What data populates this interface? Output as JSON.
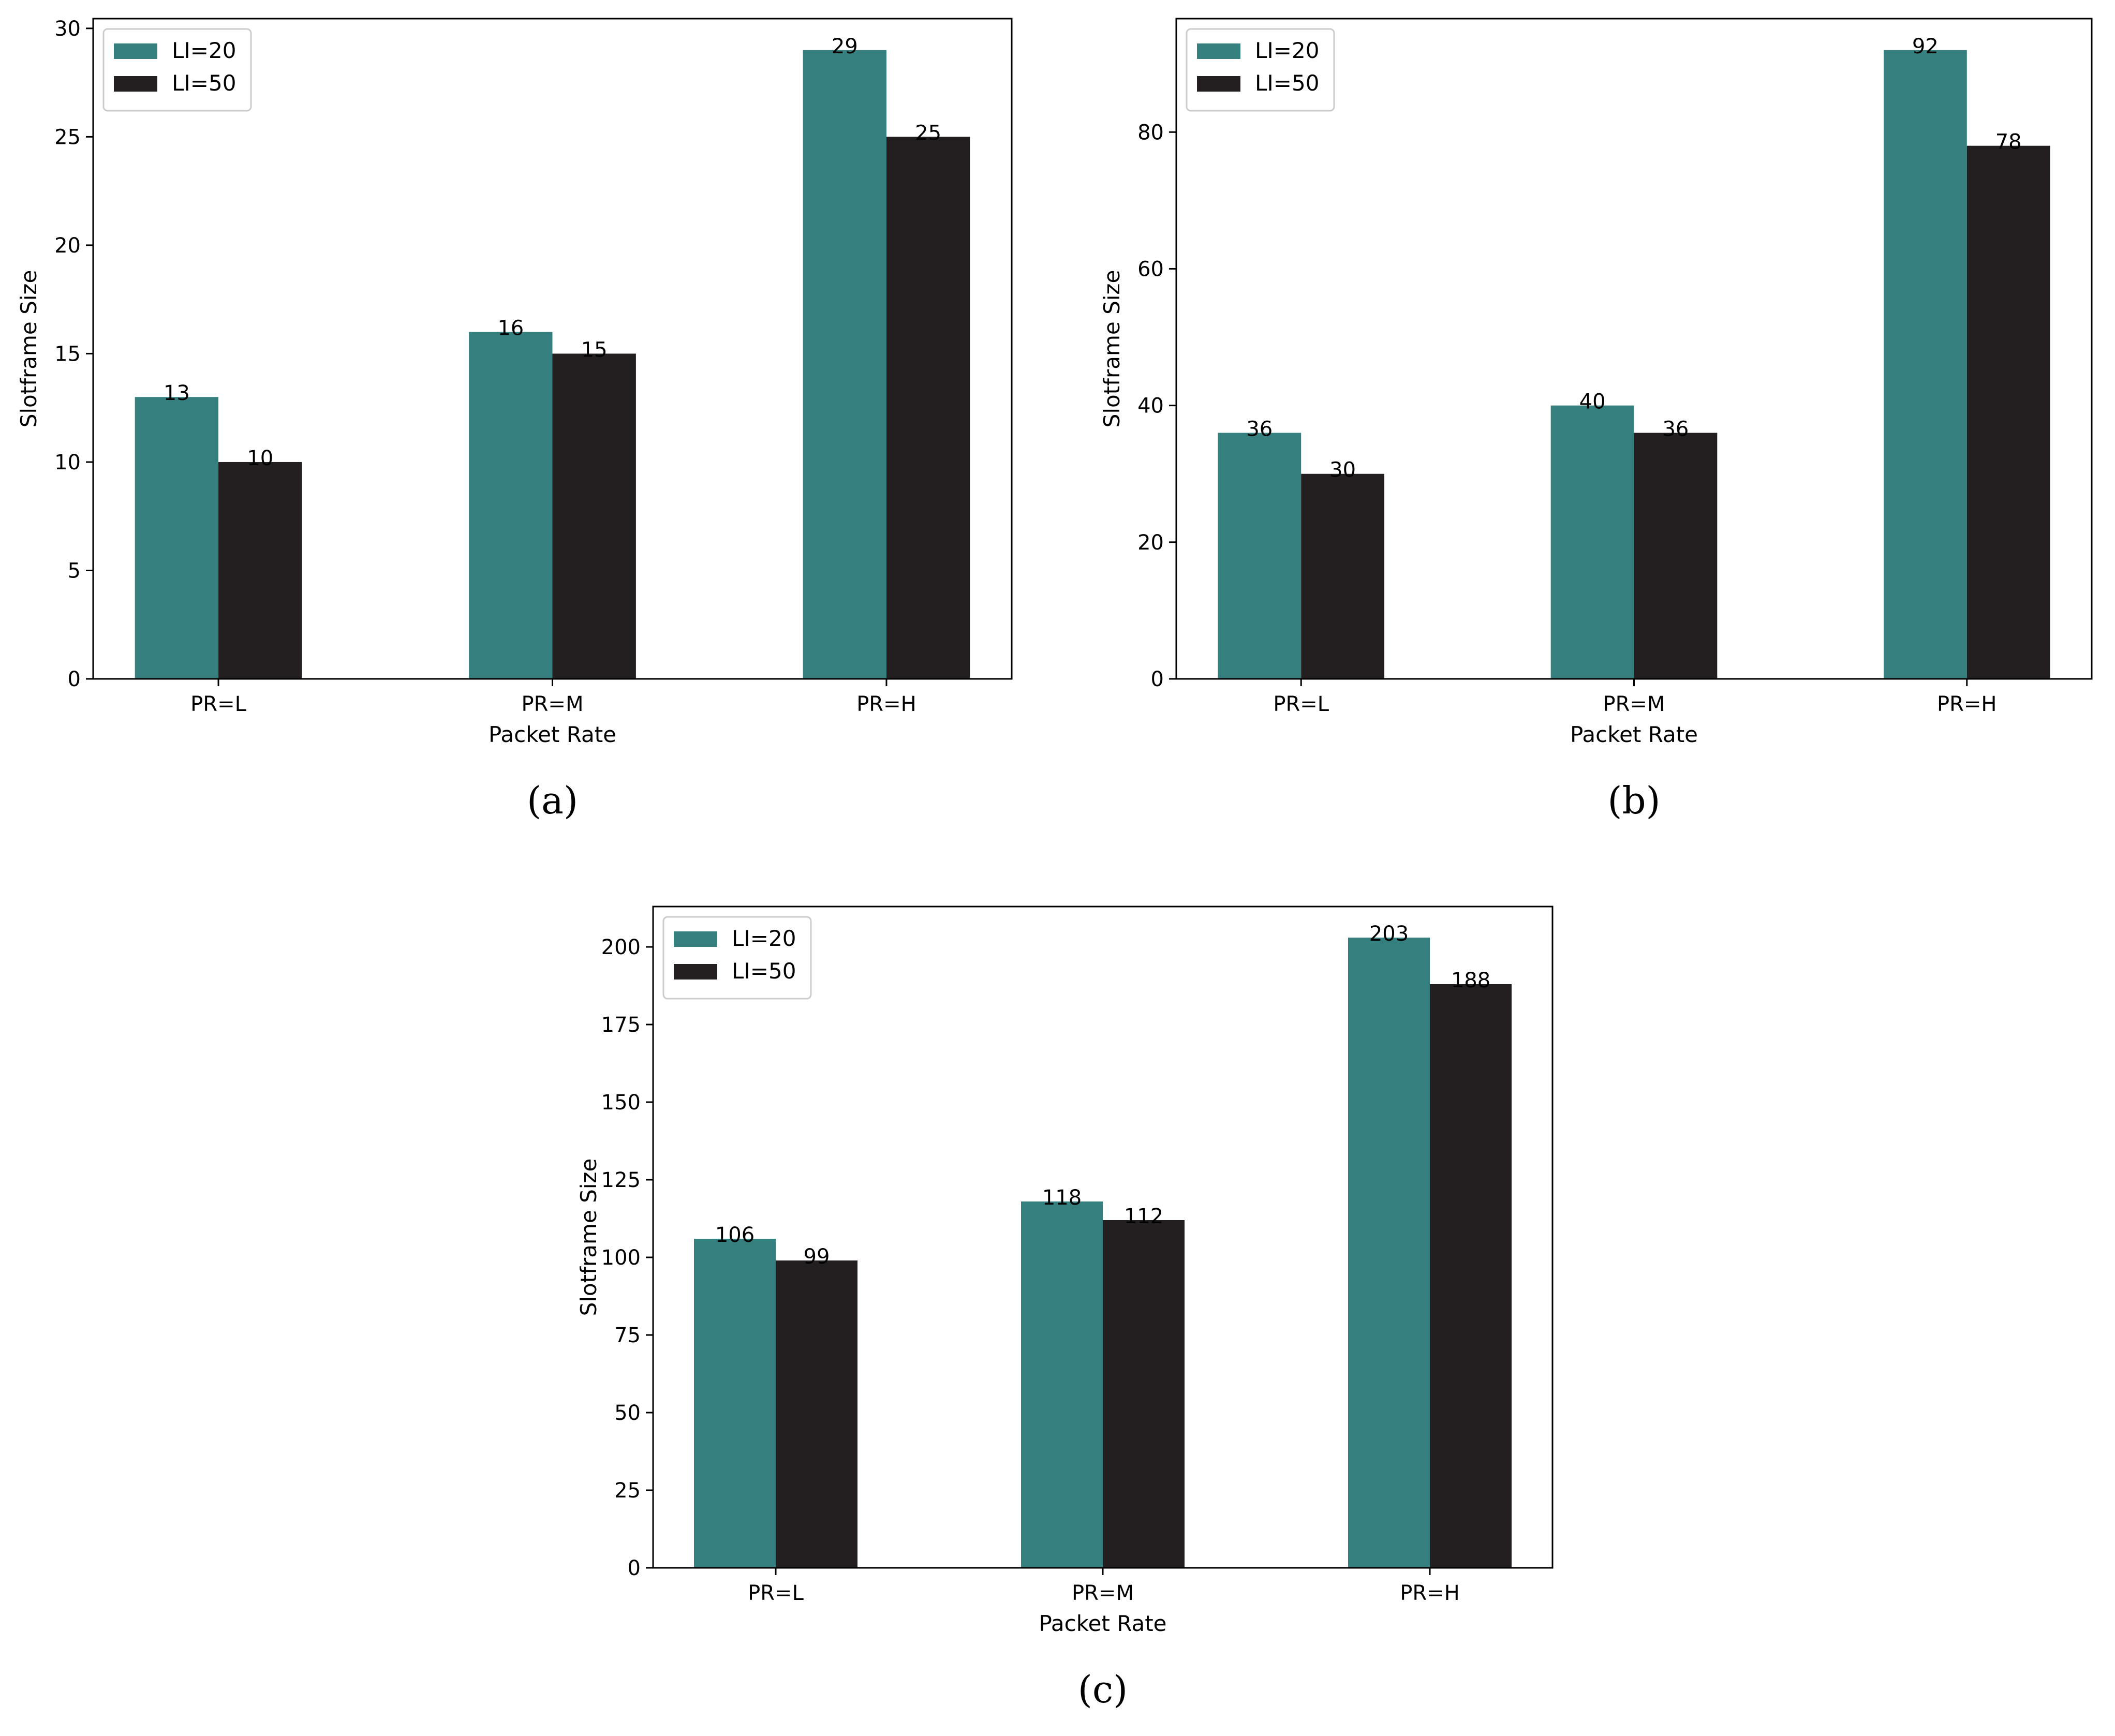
{
  "colors": {
    "series0": "#35807f",
    "series1": "#231f20"
  },
  "chart_data": [
    {
      "type": "bar",
      "caption": "(a)",
      "categories": [
        "PR=L",
        "PR=M",
        "PR=H"
      ],
      "series": [
        {
          "name": "LI=20",
          "values": [
            13,
            16,
            29
          ]
        },
        {
          "name": "LI=50",
          "values": [
            10,
            15,
            25
          ]
        }
      ],
      "data_labels": [
        [
          "13",
          "16",
          "29"
        ],
        [
          "10",
          "15",
          "25"
        ]
      ],
      "xlabel": "Packet Rate",
      "ylabel": "Slotframe Size",
      "ylim": [
        0,
        30.45
      ],
      "yticks": [
        0,
        5,
        10,
        15,
        20,
        25,
        30
      ],
      "ytick_labels": [
        "0",
        "5",
        "10",
        "15",
        "20",
        "25",
        "30"
      ],
      "legend": "top-left",
      "grid": false
    },
    {
      "type": "bar",
      "caption": "(b)",
      "categories": [
        "PR=L",
        "PR=M",
        "PR=H"
      ],
      "series": [
        {
          "name": "LI=20",
          "values": [
            36,
            40,
            92
          ]
        },
        {
          "name": "LI=50",
          "values": [
            30,
            36,
            78
          ]
        }
      ],
      "data_labels": [
        [
          "36",
          "40",
          "92"
        ],
        [
          "30",
          "36",
          "78"
        ]
      ],
      "xlabel": "Packet Rate",
      "ylabel": "Slotframe Size",
      "ylim": [
        0,
        96.6
      ],
      "yticks": [
        0,
        20,
        40,
        60,
        80
      ],
      "ytick_labels": [
        "0",
        "20",
        "40",
        "60",
        "80"
      ],
      "legend": "top-left",
      "grid": false
    },
    {
      "type": "bar",
      "caption": "(c)",
      "categories": [
        "PR=L",
        "PR=M",
        "PR=H"
      ],
      "series": [
        {
          "name": "LI=20",
          "values": [
            106,
            118,
            203
          ]
        },
        {
          "name": "LI=50",
          "values": [
            99,
            112,
            188
          ]
        }
      ],
      "data_labels": [
        [
          "106",
          "118",
          "203"
        ],
        [
          "99",
          "112",
          "188"
        ]
      ],
      "xlabel": "Packet Rate",
      "ylabel": "Slotframe Size",
      "ylim": [
        0,
        213
      ],
      "yticks": [
        0,
        25,
        50,
        75,
        100,
        125,
        150,
        175,
        200
      ],
      "ytick_labels": [
        "0",
        "25",
        "50",
        "75",
        "100",
        "125",
        "150",
        "175",
        "200"
      ],
      "legend": "top-left",
      "grid": false
    }
  ]
}
